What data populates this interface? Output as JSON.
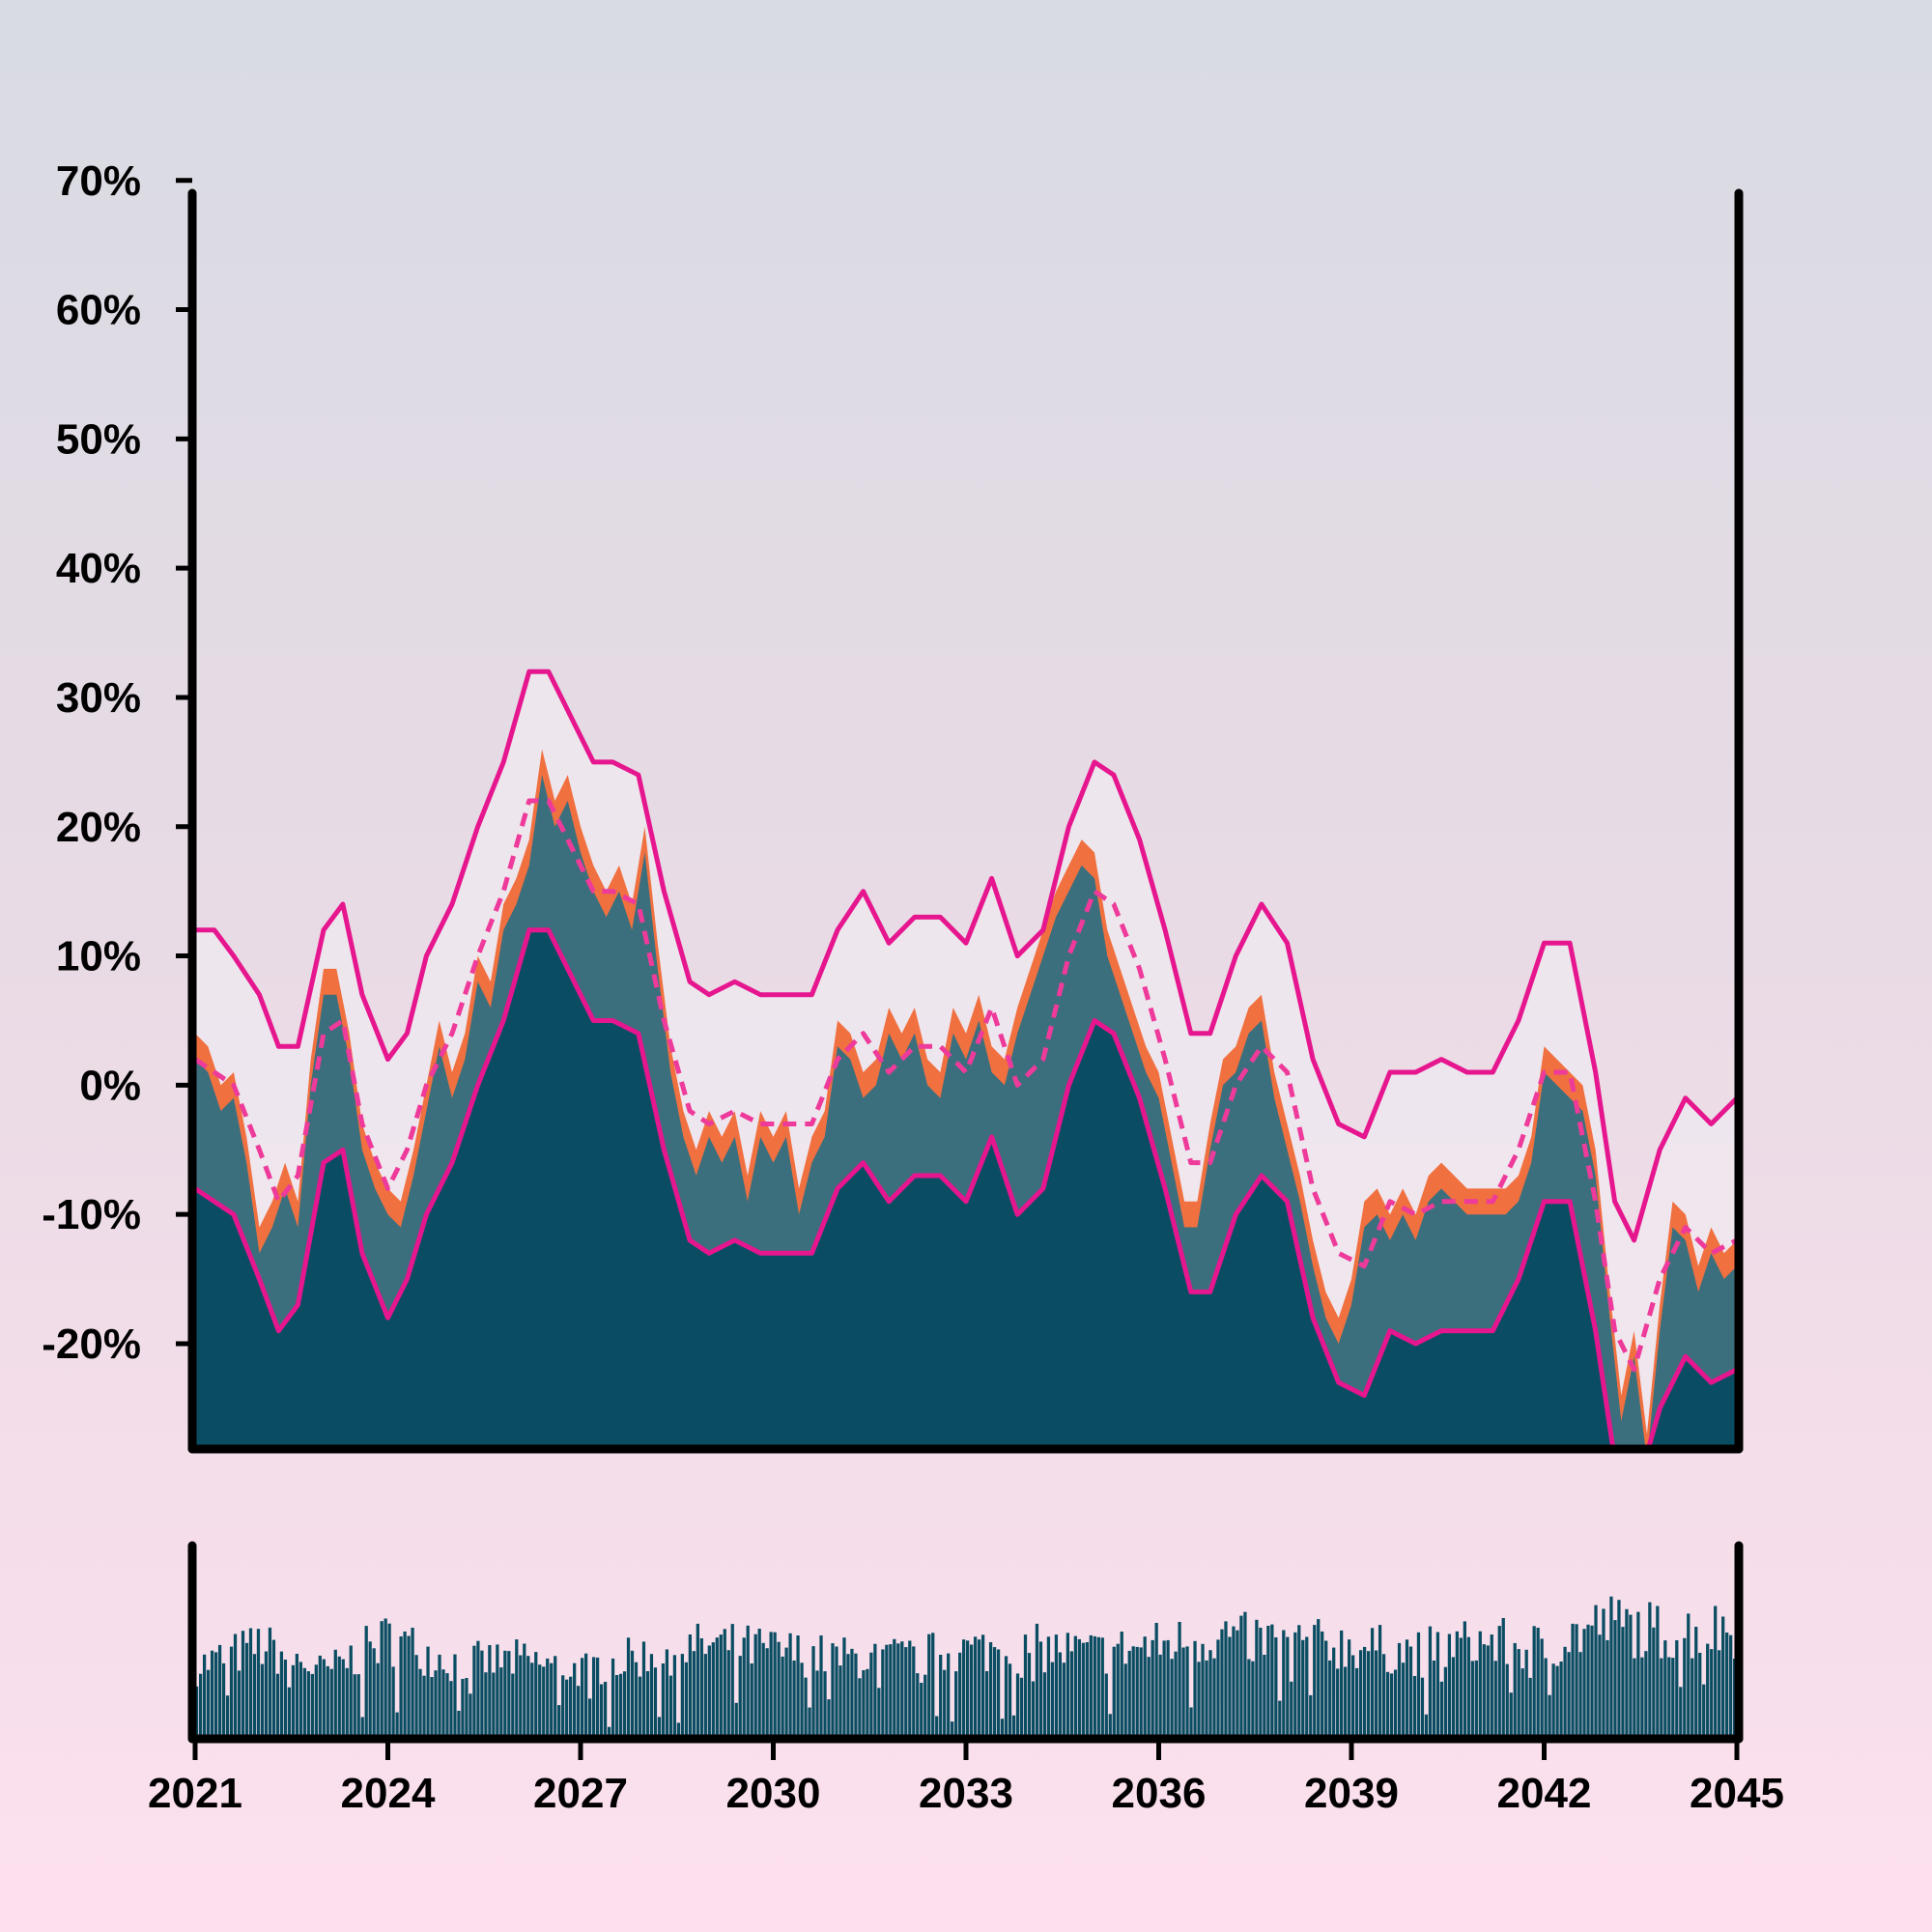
{
  "chart_data": {
    "type": "area",
    "title": "",
    "xlabel": "",
    "ylabel": "",
    "xlim": [
      2021,
      2045
    ],
    "ylim": [
      -28,
      72
    ],
    "x_ticks": [
      "2021",
      "2024",
      "2027",
      "2030",
      "2033",
      "2036",
      "2039",
      "2042",
      "2045"
    ],
    "y_ticks": [
      "70%",
      "60%",
      "50%",
      "40%",
      "30%",
      "20%",
      "10%",
      "0%",
      "-10%",
      "-20%"
    ],
    "y_tick_values": [
      70,
      60,
      50,
      40,
      30,
      20,
      10,
      0,
      -10,
      -20
    ],
    "grid": false,
    "colors": {
      "band_fill": "#eee8ee",
      "bands": "#e6168f",
      "mid_line": "#ee3a9a",
      "orange": "#f07040",
      "teal_light": "#3b6f7d",
      "teal_dark": "#0a4d62",
      "axes": "#000000"
    },
    "series": [
      {
        "kind": "upper-band",
        "x": [
          2021.0,
          2021.3,
          2021.6,
          2022.0,
          2022.3,
          2022.6,
          2023.0,
          2023.3,
          2023.6,
          2024.0,
          2024.3,
          2024.6,
          2025.0,
          2025.4,
          2025.8,
          2026.2,
          2026.5,
          2026.8,
          2027.2,
          2027.5,
          2027.9,
          2028.3,
          2028.7,
          2029.0,
          2029.4,
          2029.8,
          2030.2,
          2030.6,
          2031.0,
          2031.4,
          2031.8,
          2032.2,
          2032.6,
          2033.0,
          2033.4,
          2033.8,
          2034.2,
          2034.6,
          2035.0,
          2035.3,
          2035.7,
          2036.1,
          2036.5,
          2036.8,
          2037.2,
          2037.6,
          2038.0,
          2038.4,
          2038.8,
          2039.2,
          2039.6,
          2040.0,
          2040.4,
          2040.8,
          2041.2,
          2041.6,
          2042.0,
          2042.4,
          2042.8,
          2043.1,
          2043.4,
          2043.8,
          2044.2,
          2044.6,
          2045.0
        ],
        "values": [
          12,
          12,
          10,
          7,
          3,
          3,
          12,
          14,
          7,
          2,
          4,
          10,
          14,
          20,
          25,
          32,
          32,
          29,
          25,
          25,
          24,
          15,
          8,
          7,
          8,
          7,
          7,
          7,
          12,
          15,
          11,
          13,
          13,
          11,
          16,
          10,
          12,
          20,
          25,
          24,
          19,
          12,
          4,
          4,
          10,
          14,
          11,
          2,
          -3,
          -4,
          1,
          1,
          2,
          1,
          1,
          5,
          11,
          11,
          1,
          -9,
          -12,
          -5,
          -1,
          -3,
          -1
        ]
      },
      {
        "kind": "middle-line",
        "x": [
          2021.0,
          2021.3,
          2021.6,
          2022.0,
          2022.3,
          2022.6,
          2023.0,
          2023.3,
          2023.6,
          2024.0,
          2024.3,
          2024.6,
          2025.0,
          2025.4,
          2025.8,
          2026.2,
          2026.5,
          2026.8,
          2027.2,
          2027.5,
          2027.9,
          2028.3,
          2028.7,
          2029.0,
          2029.4,
          2029.8,
          2030.2,
          2030.6,
          2031.0,
          2031.4,
          2031.8,
          2032.2,
          2032.6,
          2033.0,
          2033.4,
          2033.8,
          2034.2,
          2034.6,
          2035.0,
          2035.3,
          2035.7,
          2036.1,
          2036.5,
          2036.8,
          2037.2,
          2037.6,
          2038.0,
          2038.4,
          2038.8,
          2039.2,
          2039.6,
          2040.0,
          2040.4,
          2040.8,
          2041.2,
          2041.6,
          2042.0,
          2042.4,
          2042.8,
          2043.1,
          2043.4,
          2043.8,
          2044.2,
          2044.6,
          2045.0
        ],
        "values": [
          2,
          1,
          0,
          -5,
          -9,
          -7,
          4,
          5,
          -3,
          -8,
          -5,
          0,
          4,
          10,
          15,
          22,
          22,
          19,
          15,
          15,
          14,
          5,
          -2,
          -3,
          -2,
          -3,
          -3,
          -3,
          2,
          4,
          1,
          3,
          3,
          1,
          6,
          0,
          2,
          10,
          15,
          14,
          9,
          2,
          -6,
          -6,
          0,
          3,
          1,
          -8,
          -13,
          -14,
          -9,
          -10,
          -9,
          -9,
          -9,
          -5,
          1,
          1,
          -9,
          -19,
          -22,
          -15,
          -11,
          -13,
          -12
        ]
      },
      {
        "kind": "lower-band",
        "x": [
          2021.0,
          2021.3,
          2021.6,
          2022.0,
          2022.3,
          2022.6,
          2023.0,
          2023.3,
          2023.6,
          2024.0,
          2024.3,
          2024.6,
          2025.0,
          2025.4,
          2025.8,
          2026.2,
          2026.5,
          2026.8,
          2027.2,
          2027.5,
          2027.9,
          2028.3,
          2028.7,
          2029.0,
          2029.4,
          2029.8,
          2030.2,
          2030.6,
          2031.0,
          2031.4,
          2031.8,
          2032.2,
          2032.6,
          2033.0,
          2033.4,
          2033.8,
          2034.2,
          2034.6,
          2035.0,
          2035.3,
          2035.7,
          2036.1,
          2036.5,
          2036.8,
          2037.2,
          2037.6,
          2038.0,
          2038.4,
          2038.8,
          2039.2,
          2039.6,
          2040.0,
          2040.4,
          2040.8,
          2041.2,
          2041.6,
          2042.0,
          2042.4,
          2042.8,
          2043.1,
          2043.4,
          2043.8,
          2044.2,
          2044.6,
          2045.0
        ],
        "values": [
          -8,
          -9,
          -10,
          -15,
          -19,
          -17,
          -6,
          -5,
          -13,
          -18,
          -15,
          -10,
          -6,
          0,
          5,
          12,
          12,
          9,
          5,
          5,
          4,
          -5,
          -12,
          -13,
          -12,
          -13,
          -13,
          -13,
          -8,
          -6,
          -9,
          -7,
          -7,
          -9,
          -4,
          -10,
          -8,
          0,
          5,
          4,
          -1,
          -8,
          -16,
          -16,
          -10,
          -7,
          -9,
          -18,
          -23,
          -24,
          -19,
          -20,
          -19,
          -19,
          -19,
          -15,
          -9,
          -9,
          -19,
          -29,
          -32,
          -25,
          -21,
          -23,
          -22
        ]
      },
      {
        "kind": "orange-area",
        "x": [
          2021.0,
          2021.2,
          2021.4,
          2021.6,
          2021.8,
          2022.0,
          2022.2,
          2022.4,
          2022.6,
          2022.8,
          2023.0,
          2023.2,
          2023.4,
          2023.6,
          2023.8,
          2024.0,
          2024.2,
          2024.4,
          2024.6,
          2024.8,
          2025.0,
          2025.2,
          2025.4,
          2025.6,
          2025.8,
          2026.0,
          2026.2,
          2026.4,
          2026.6,
          2026.8,
          2027.0,
          2027.2,
          2027.4,
          2027.6,
          2027.8,
          2028.0,
          2028.2,
          2028.4,
          2028.6,
          2028.8,
          2029.0,
          2029.2,
          2029.4,
          2029.6,
          2029.8,
          2030.0,
          2030.2,
          2030.4,
          2030.6,
          2030.8,
          2031.0,
          2031.2,
          2031.4,
          2031.6,
          2031.8,
          2032.0,
          2032.2,
          2032.4,
          2032.6,
          2032.8,
          2033.0,
          2033.2,
          2033.4,
          2033.6,
          2033.8,
          2034.0,
          2034.2,
          2034.4,
          2034.6,
          2034.8,
          2035.0,
          2035.2,
          2035.4,
          2035.6,
          2035.8,
          2036.0,
          2036.2,
          2036.4,
          2036.6,
          2036.8,
          2037.0,
          2037.2,
          2037.4,
          2037.6,
          2037.8,
          2038.0,
          2038.2,
          2038.4,
          2038.6,
          2038.8,
          2039.0,
          2039.2,
          2039.4,
          2039.6,
          2039.8,
          2040.0,
          2040.2,
          2040.4,
          2040.6,
          2040.8,
          2041.0,
          2041.2,
          2041.4,
          2041.6,
          2041.8,
          2042.0,
          2042.2,
          2042.4,
          2042.6,
          2042.8,
          2043.0,
          2043.2,
          2043.4,
          2043.6,
          2043.8,
          2044.0,
          2044.2,
          2044.4,
          2044.6,
          2044.8,
          2045.0
        ],
        "values": [
          4,
          3,
          0,
          1,
          -4,
          -11,
          -9,
          -6,
          -9,
          2,
          9,
          9,
          4,
          -3,
          -6,
          -8,
          -9,
          -5,
          0,
          5,
          1,
          4,
          10,
          8,
          14,
          16,
          19,
          26,
          22,
          24,
          20,
          17,
          15,
          17,
          14,
          20,
          11,
          3,
          -2,
          -5,
          -2,
          -4,
          -2,
          -7,
          -2,
          -4,
          -2,
          -8,
          -4,
          -2,
          5,
          4,
          1,
          2,
          6,
          4,
          6,
          2,
          1,
          6,
          4,
          7,
          3,
          2,
          6,
          9,
          12,
          15,
          17,
          19,
          18,
          12,
          9,
          6,
          3,
          1,
          -4,
          -9,
          -9,
          -3,
          2,
          3,
          6,
          7,
          1,
          -3,
          -7,
          -12,
          -16,
          -18,
          -15,
          -9,
          -8,
          -10,
          -8,
          -10,
          -7,
          -6,
          -7,
          -8,
          -8,
          -8,
          -8,
          -7,
          -4,
          3,
          2,
          1,
          0,
          -5,
          -15,
          -24,
          -19,
          -27,
          -17,
          -9,
          -10,
          -14,
          -11,
          -13,
          -12
        ]
      },
      {
        "kind": "teal-light-area",
        "x": [
          2021.0,
          2021.2,
          2021.4,
          2021.6,
          2021.8,
          2022.0,
          2022.2,
          2022.4,
          2022.6,
          2022.8,
          2023.0,
          2023.2,
          2023.4,
          2023.6,
          2023.8,
          2024.0,
          2024.2,
          2024.4,
          2024.6,
          2024.8,
          2025.0,
          2025.2,
          2025.4,
          2025.6,
          2025.8,
          2026.0,
          2026.2,
          2026.4,
          2026.6,
          2026.8,
          2027.0,
          2027.2,
          2027.4,
          2027.6,
          2027.8,
          2028.0,
          2028.2,
          2028.4,
          2028.6,
          2028.8,
          2029.0,
          2029.2,
          2029.4,
          2029.6,
          2029.8,
          2030.0,
          2030.2,
          2030.4,
          2030.6,
          2030.8,
          2031.0,
          2031.2,
          2031.4,
          2031.6,
          2031.8,
          2032.0,
          2032.2,
          2032.4,
          2032.6,
          2032.8,
          2033.0,
          2033.2,
          2033.4,
          2033.6,
          2033.8,
          2034.0,
          2034.2,
          2034.4,
          2034.6,
          2034.8,
          2035.0,
          2035.2,
          2035.4,
          2035.6,
          2035.8,
          2036.0,
          2036.2,
          2036.4,
          2036.6,
          2036.8,
          2037.0,
          2037.2,
          2037.4,
          2037.6,
          2037.8,
          2038.0,
          2038.2,
          2038.4,
          2038.6,
          2038.8,
          2039.0,
          2039.2,
          2039.4,
          2039.6,
          2039.8,
          2040.0,
          2040.2,
          2040.4,
          2040.6,
          2040.8,
          2041.0,
          2041.2,
          2041.4,
          2041.6,
          2041.8,
          2042.0,
          2042.2,
          2042.4,
          2042.6,
          2042.8,
          2043.0,
          2043.2,
          2043.4,
          2043.6,
          2043.8,
          2044.0,
          2044.2,
          2044.4,
          2044.6,
          2044.8,
          2045.0
        ],
        "values": [
          2,
          1,
          -2,
          -1,
          -6,
          -13,
          -11,
          -8,
          -11,
          0,
          7,
          7,
          2,
          -5,
          -8,
          -10,
          -11,
          -7,
          -2,
          3,
          -1,
          2,
          8,
          6,
          12,
          14,
          17,
          24,
          20,
          22,
          18,
          15,
          13,
          15,
          12,
          18,
          9,
          1,
          -4,
          -7,
          -4,
          -6,
          -4,
          -9,
          -4,
          -6,
          -4,
          -10,
          -6,
          -4,
          3,
          2,
          -1,
          0,
          4,
          2,
          4,
          0,
          -1,
          4,
          2,
          5,
          1,
          0,
          4,
          7,
          10,
          13,
          15,
          17,
          16,
          10,
          7,
          4,
          1,
          -1,
          -6,
          -11,
          -11,
          -5,
          0,
          1,
          4,
          5,
          -1,
          -5,
          -9,
          -14,
          -18,
          -20,
          -17,
          -11,
          -10,
          -12,
          -10,
          -12,
          -9,
          -8,
          -9,
          -10,
          -10,
          -10,
          -10,
          -9,
          -6,
          1,
          0,
          -1,
          -2,
          -7,
          -17,
          -26,
          -21,
          -29,
          -19,
          -11,
          -12,
          -16,
          -13,
          -15,
          -14
        ]
      },
      {
        "kind": "volume-bars",
        "x_start": 2021.0,
        "x_end": 2045.0,
        "count": 400,
        "range": [
          0,
          1
        ],
        "trend": [
          0.55,
          0.72,
          0.5,
          0.78,
          0.58,
          0.6,
          0.52,
          0.64,
          0.72,
          0.68,
          0.62,
          0.62,
          0.68,
          0.7,
          0.66,
          0.72,
          0.8,
          0.74,
          0.72,
          0.66,
          0.75,
          0.7,
          0.9,
          0.82,
          0.86
        ]
      }
    ]
  }
}
